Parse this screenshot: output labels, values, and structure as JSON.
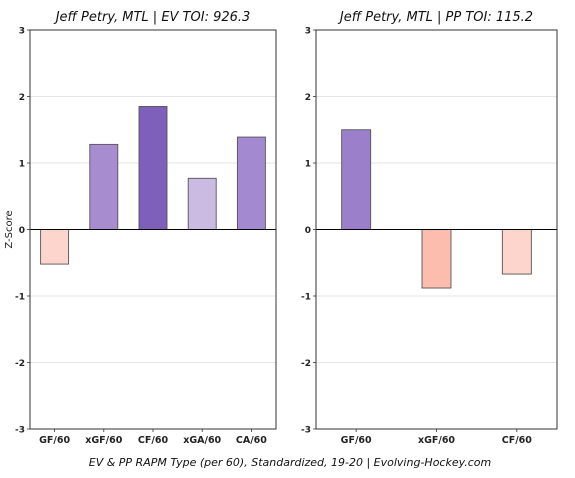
{
  "footer": "EV & PP RAPM Type (per 60), Standardized, 19-20    |    Evolving-Hockey.com",
  "colors": {
    "purple_dark": "#7e5fb9",
    "purple_mid": "#a78cd0",
    "purple_light": "#cbbbe2",
    "red_light": "#fdd5cc",
    "red_mid": "#fcbcae",
    "bar_edge": "#555555",
    "grid": "#e6e6e6",
    "zero_line": "#000000"
  },
  "chart_data": [
    {
      "type": "bar",
      "title": "Jeff Petry, MTL  |  EV TOI: 926.3",
      "ylabel": "Z-Score",
      "xlabel": "",
      "ylim": [
        -3,
        3
      ],
      "yticks": [
        "3",
        "2",
        "1",
        "0",
        "-1",
        "-2",
        "-3"
      ],
      "grid": true,
      "categories": [
        "GF/60",
        "xGF/60",
        "CF/60",
        "xGA/60",
        "CA/60"
      ],
      "values": [
        -0.52,
        1.28,
        1.85,
        0.77,
        1.39
      ],
      "bar_colors": [
        "#fdd5cc",
        "#a78cd0",
        "#7e5fb9",
        "#cbbbe2",
        "#a389cf"
      ]
    },
    {
      "type": "bar",
      "title": "Jeff Petry, MTL  |  PP TOI: 115.2",
      "ylabel": "",
      "xlabel": "",
      "ylim": [
        -3,
        3
      ],
      "yticks": [
        "3",
        "2",
        "1",
        "0",
        "-1",
        "-2",
        "-3"
      ],
      "grid": true,
      "categories": [
        "GF/60",
        "xGF/60",
        "CF/60"
      ],
      "values": [
        1.5,
        -0.88,
        -0.67
      ],
      "bar_colors": [
        "#9b7fca",
        "#fcbcae",
        "#fdd5cc"
      ]
    }
  ]
}
